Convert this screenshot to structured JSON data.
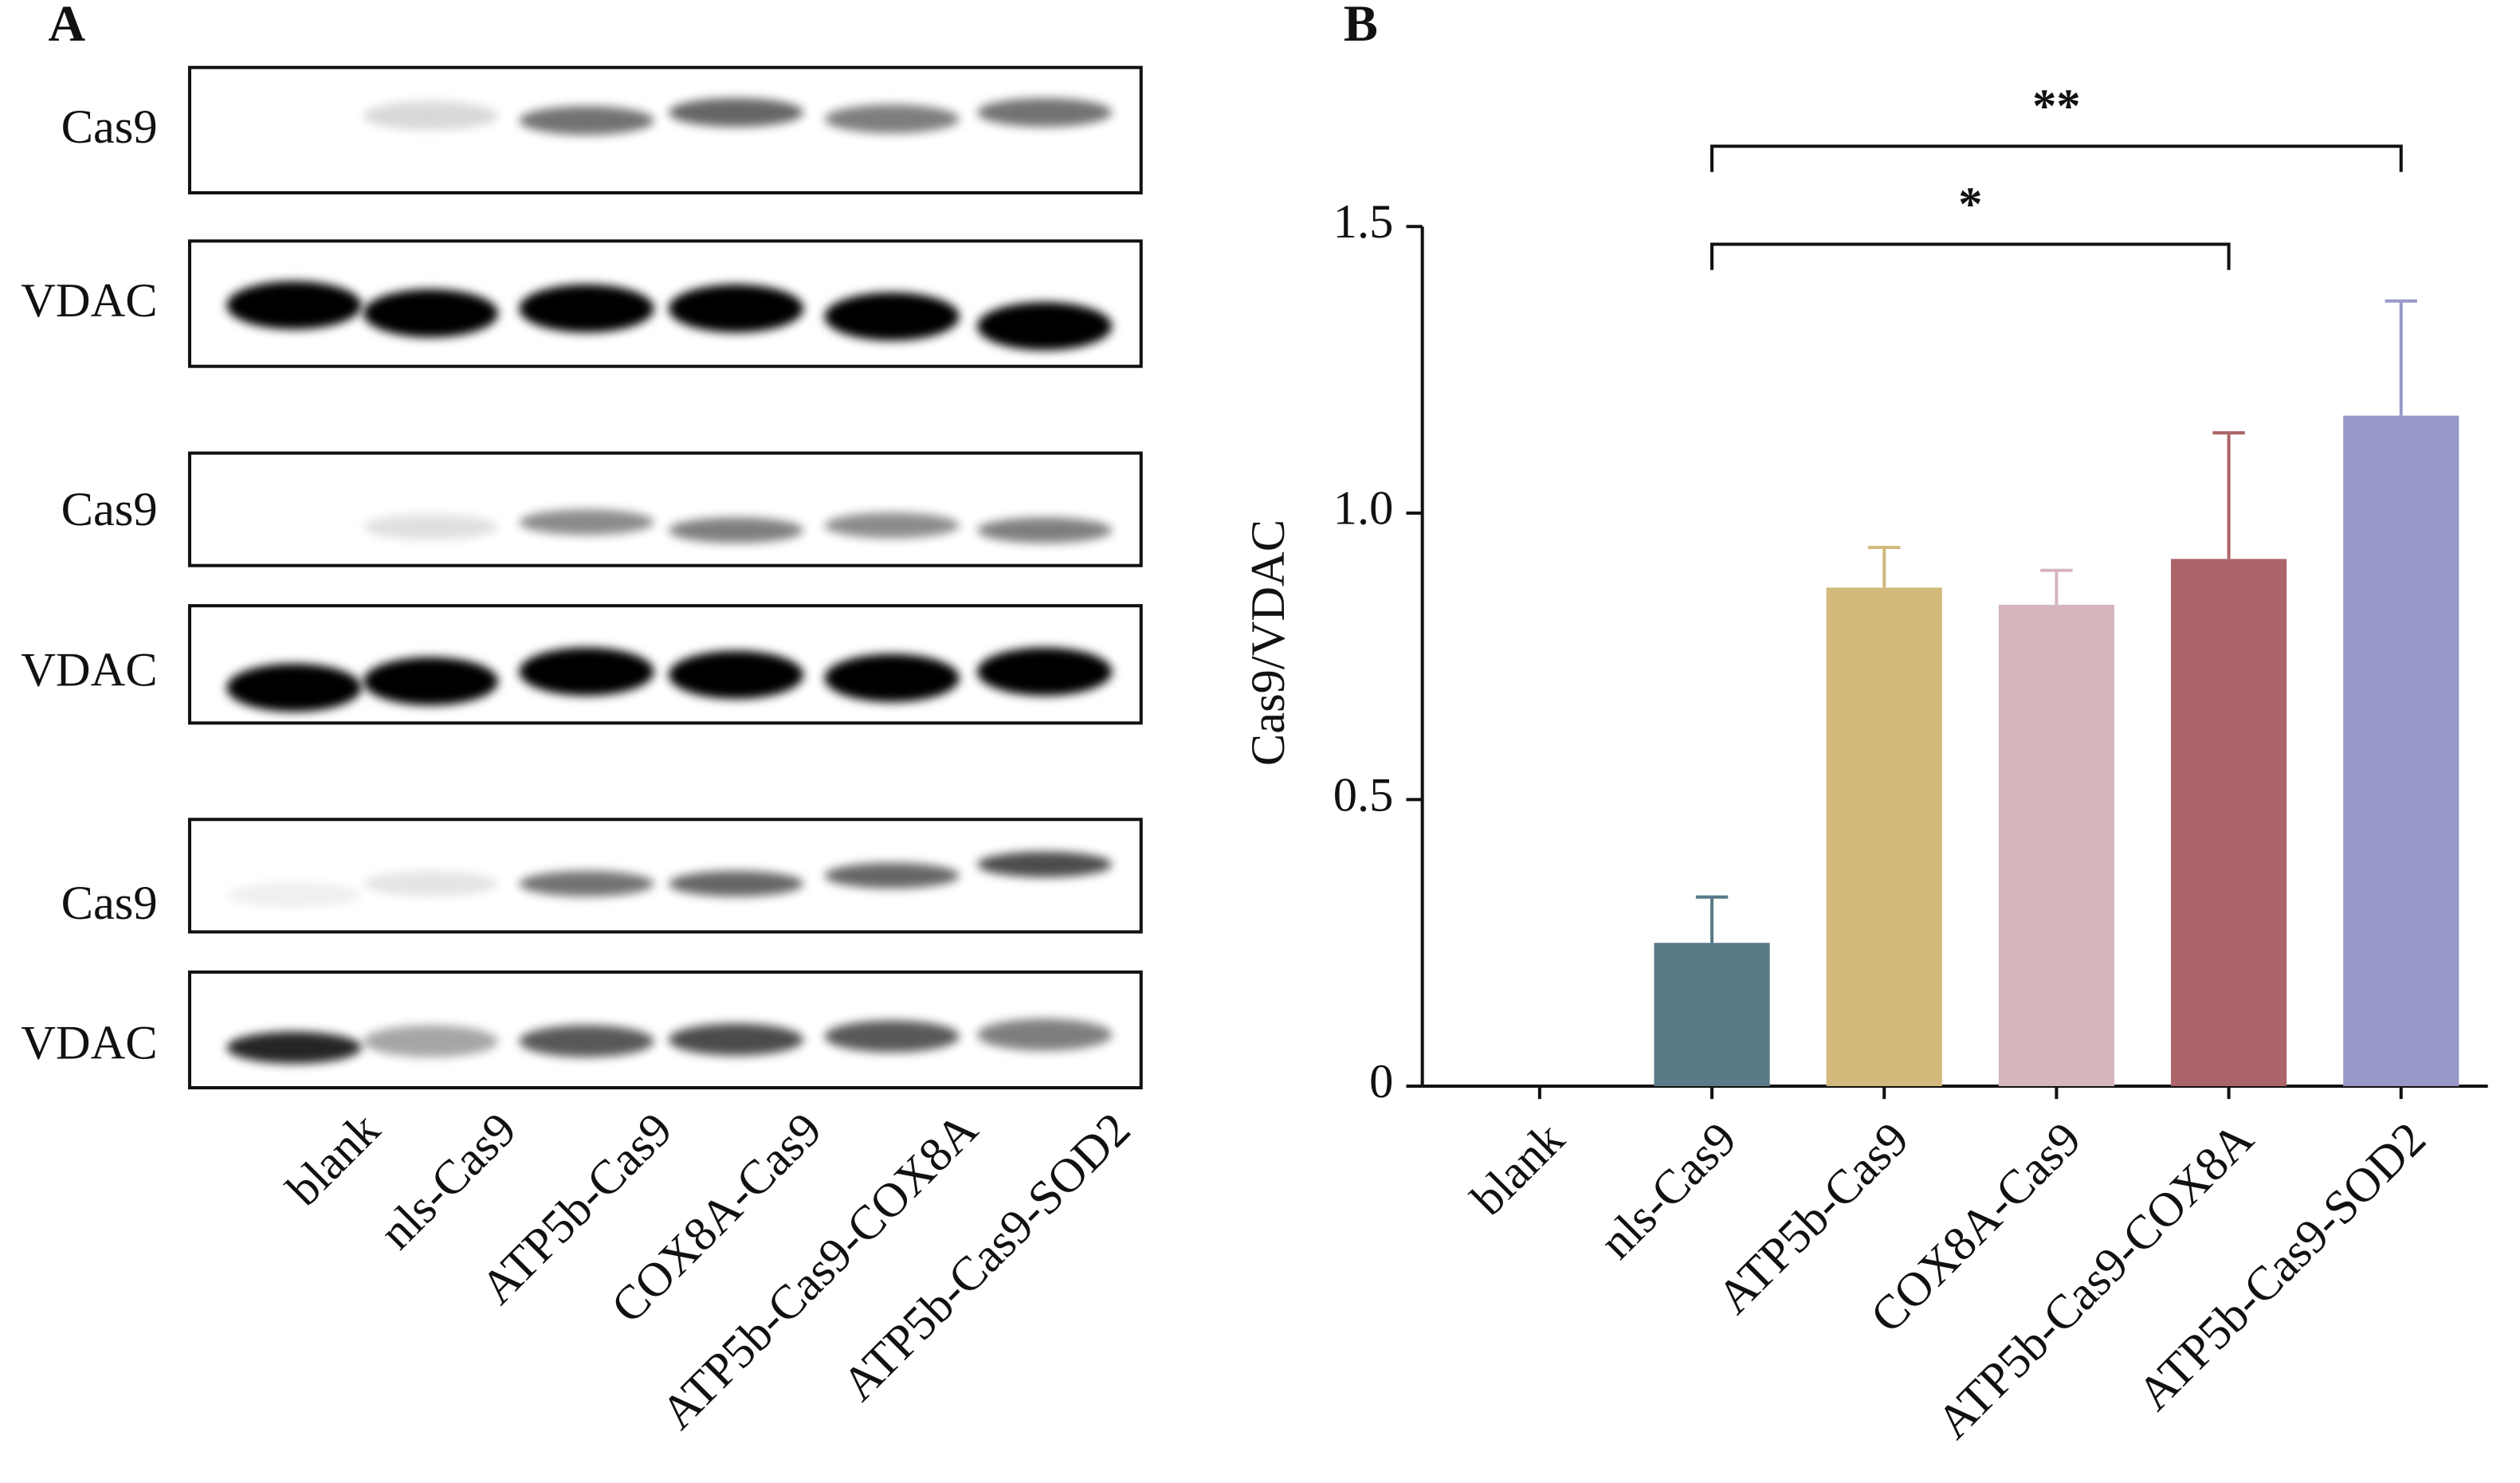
{
  "panel_a": {
    "label": "A",
    "blots": [
      "Cas9",
      "VDAC",
      "Cas9",
      "VDAC",
      "Cas9",
      "VDAC"
    ],
    "lanes": [
      "blank",
      "nls-Cas9",
      "ATP5b-Cas9",
      "COX8A-Cas9",
      "ATP5b-Cas9-COX8A",
      "ATP5b-Cas9-SOD2"
    ]
  },
  "chart_data": {
    "type": "bar",
    "panel_label": "B",
    "y_label": "Cas9/VDAC",
    "categories": [
      "blank",
      "nls-Cas9",
      "ATP5b-Cas9",
      "COX8A-Cas9",
      "ATP5b-Cas9-COX8A",
      "ATP5b-Cas9-SOD2"
    ],
    "values": [
      0,
      0.25,
      0.87,
      0.84,
      0.92,
      1.17
    ],
    "errors": [
      null,
      0.08,
      0.07,
      0.06,
      0.22,
      0.2
    ],
    "colors": [
      "#5a7a87",
      "#5a7a87",
      "#d3b97c",
      "#d6b5bc",
      "#ab6469",
      "#9898c8"
    ],
    "ylim": [
      0,
      1.5
    ],
    "yticks": [
      0,
      0.5,
      {
        "value": 1,
        "label": "1.0"
      },
      1.5
    ],
    "significance": [
      {
        "between": [
          "nls-Cas9",
          "ATP5b-Cas9-COX8A"
        ],
        "label": "*"
      },
      {
        "between": [
          "nls-Cas9",
          "ATP5b-Cas9-SOD2"
        ],
        "label": "**"
      }
    ]
  }
}
